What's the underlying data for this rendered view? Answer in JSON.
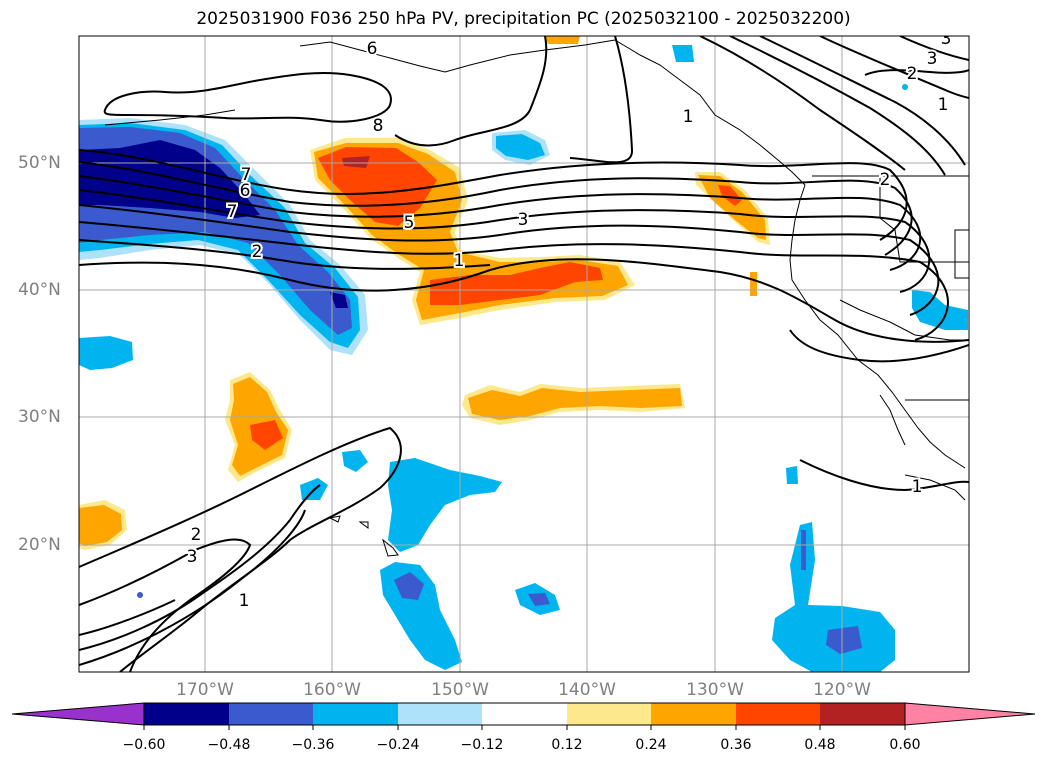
{
  "title": "2025031900 F036 250 hPa PV, precipitation PC (2025032100 - 2025032200)",
  "axes": {
    "lon_ticks": [
      "170°W",
      "160°W",
      "150°W",
      "140°W",
      "130°W",
      "120°W"
    ],
    "lat_ticks": [
      "50°N",
      "40°N",
      "30°N",
      "20°N"
    ]
  },
  "contour_labels": [
    "6",
    "8",
    "7",
    "6",
    "7",
    "2",
    "5",
    "3",
    "1",
    "2",
    "3",
    "1",
    "3",
    "2",
    "1",
    "1",
    "2",
    "3",
    "1"
  ],
  "colorbar": {
    "ticks": [
      "−0.60",
      "−0.48",
      "−0.36",
      "−0.24",
      "−0.12",
      "0.12",
      "0.24",
      "0.36",
      "0.48",
      "0.60"
    ],
    "colors": [
      "#9932cc",
      "#00008b",
      "#3a5acd",
      "#00b4f0",
      "#ade2fa",
      "#ffffff",
      "#fde98b",
      "#ffa500",
      "#ff4500",
      "#b22222",
      "#ff82a5"
    ]
  },
  "colors": {
    "contour": "#000000",
    "grid": "#a9a9a9",
    "coast": "#000000"
  }
}
